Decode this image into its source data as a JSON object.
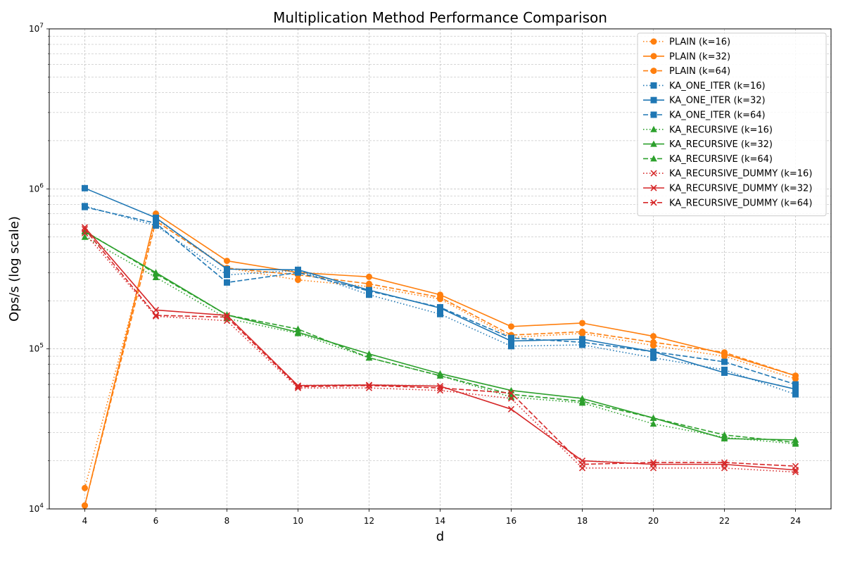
{
  "chart_data": {
    "type": "line",
    "title": "Multiplication Method Performance Comparison",
    "xlabel": "d",
    "ylabel": "Ops/s (log scale)",
    "yscale": "log",
    "ylim": [
      10000,
      10000000
    ],
    "xlim": [
      3,
      25
    ],
    "xticks": [
      4,
      6,
      8,
      10,
      12,
      14,
      16,
      18,
      20,
      22,
      24
    ],
    "yticks": [
      {
        "value": 10000,
        "base": "10",
        "exp": "4"
      },
      {
        "value": 100000,
        "base": "10",
        "exp": "5"
      },
      {
        "value": 1000000,
        "base": "10",
        "exp": "6"
      },
      {
        "value": 10000000,
        "base": "10",
        "exp": "7"
      }
    ],
    "grid": true,
    "legend_position": "top-right",
    "x": [
      4,
      6,
      8,
      10,
      12,
      14,
      16,
      18,
      20,
      22,
      24
    ],
    "series": [
      {
        "name": "PLAIN (k=16)",
        "color": "#ff7f0e",
        "dash": "dotted",
        "marker": "circle",
        "values": [
          13500,
          650000,
          320000,
          270000,
          245000,
          205000,
          118000,
          125000,
          105000,
          90000,
          65000
        ]
      },
      {
        "name": "PLAIN (k=32)",
        "color": "#ff7f0e",
        "dash": "solid",
        "marker": "circle",
        "values": [
          10500,
          700000,
          355000,
          300000,
          282000,
          218000,
          138000,
          145000,
          120000,
          93000,
          68000
        ]
      },
      {
        "name": "PLAIN (k=64)",
        "color": "#ff7f0e",
        "dash": "dashed",
        "marker": "circle",
        "values": [
          10500,
          630000,
          320000,
          290000,
          255000,
          210000,
          122000,
          128000,
          110000,
          95000,
          68000
        ]
      },
      {
        "name": "KA_ONE_ITER (k=16)",
        "color": "#1f77b4",
        "dash": "dotted",
        "marker": "square",
        "values": [
          780000,
          590000,
          290000,
          310000,
          218000,
          165000,
          104000,
          106000,
          88000,
          74000,
          52000
        ]
      },
      {
        "name": "KA_ONE_ITER (k=32)",
        "color": "#1f77b4",
        "dash": "solid",
        "marker": "square",
        "values": [
          1010000,
          660000,
          315000,
          312000,
          233000,
          180000,
          112000,
          115000,
          96000,
          71000,
          56000
        ]
      },
      {
        "name": "KA_ONE_ITER (k=64)",
        "color": "#1f77b4",
        "dash": "dashed",
        "marker": "square",
        "values": [
          770000,
          610000,
          260000,
          300000,
          230000,
          182000,
          117000,
          110000,
          96000,
          83000,
          60000
        ]
      },
      {
        "name": "KA_RECURSIVE (k=16)",
        "color": "#2ca02c",
        "dash": "dotted",
        "marker": "triangle",
        "values": [
          500000,
          280000,
          155000,
          125000,
          88000,
          68000,
          50000,
          46000,
          34000,
          28000,
          25500
        ]
      },
      {
        "name": "KA_RECURSIVE (k=32)",
        "color": "#2ca02c",
        "dash": "solid",
        "marker": "triangle",
        "values": [
          540000,
          300000,
          163000,
          127000,
          93000,
          70000,
          55000,
          49000,
          37000,
          27500,
          27000
        ]
      },
      {
        "name": "KA_RECURSIVE (k=64)",
        "color": "#2ca02c",
        "dash": "dashed",
        "marker": "triangle",
        "values": [
          545000,
          295000,
          163000,
          133000,
          88000,
          68000,
          52000,
          47000,
          37000,
          29000,
          26000
        ]
      },
      {
        "name": "KA_RECURSIVE_DUMMY (k=16)",
        "color": "#d62728",
        "dash": "dotted",
        "marker": "x",
        "values": [
          530000,
          160000,
          150000,
          57000,
          57000,
          55000,
          49000,
          18000,
          18000,
          18000,
          17000
        ]
      },
      {
        "name": "KA_RECURSIVE_DUMMY (k=32)",
        "color": "#d62728",
        "dash": "solid",
        "marker": "x",
        "values": [
          575000,
          175000,
          162000,
          59000,
          59500,
          58500,
          42000,
          20000,
          19000,
          19000,
          17500
        ]
      },
      {
        "name": "KA_RECURSIVE_DUMMY (k=64)",
        "color": "#d62728",
        "dash": "dashed",
        "marker": "x",
        "values": [
          560000,
          162000,
          158000,
          58000,
          59000,
          57000,
          53000,
          19000,
          19500,
          19500,
          18500
        ]
      }
    ]
  }
}
